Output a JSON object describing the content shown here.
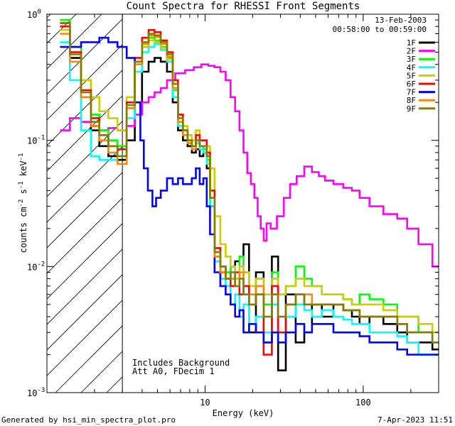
{
  "chart_data": {
    "type": "line",
    "title": "Count Spectra for RHESSI Front Segments",
    "xlabel": "Energy (keV)",
    "ylabel": "counts cm-2 s-1 keV-1",
    "xscale": "log",
    "yscale": "log",
    "xlim": [
      1.0,
      300.0
    ],
    "ylim": [
      0.001,
      1.0
    ],
    "x_ticks": [
      {
        "value": 10,
        "label": "10"
      },
      {
        "value": 100,
        "label": "100"
      }
    ],
    "y_ticks": [
      {
        "value": 1,
        "label": "10",
        "exp": "0"
      },
      {
        "value": 0.1,
        "label": "10",
        "exp": "-1"
      },
      {
        "value": 0.01,
        "label": "10",
        "exp": "-2"
      },
      {
        "value": 0.001,
        "label": "10",
        "exp": "-3"
      }
    ],
    "shaded_region": {
      "x_from": 1.0,
      "x_to": 3.0,
      "style": "hatched"
    },
    "date": "13-Feb-2003",
    "time_range": "00:58:00 to 00:59:00",
    "annotations": [
      "Includes Background",
      "Att A0, FDecim 1"
    ],
    "footer_left": "Generated by hsi_min_spectra_plot.pro",
    "footer_right": "7-Apr-2023 11:51",
    "series": [
      {
        "name": "1F",
        "color": "#000000",
        "x": [
          1.3,
          1.5,
          1.8,
          2.0,
          2.3,
          2.6,
          3.0,
          3.4,
          3.8,
          4.2,
          4.6,
          5.0,
          5.5,
          6.0,
          6.5,
          7.0,
          7.5,
          8.0,
          8.5,
          9.0,
          9.5,
          10.0,
          10.5,
          11.0,
          12.0,
          13,
          14,
          15,
          16,
          17,
          18,
          20,
          22,
          25,
          28,
          30,
          35,
          40,
          45,
          50,
          60,
          70,
          80,
          90,
          100,
          120,
          150,
          180,
          200,
          250,
          300
        ],
        "y": [
          0.85,
          0.45,
          0.22,
          0.12,
          0.09,
          0.075,
          0.07,
          0.1,
          0.2,
          0.35,
          0.42,
          0.45,
          0.42,
          0.35,
          0.2,
          0.12,
          0.1,
          0.09,
          0.08,
          0.085,
          0.075,
          0.08,
          0.06,
          0.03,
          0.012,
          0.009,
          0.008,
          0.01,
          0.011,
          0.012,
          0.015,
          0.003,
          0.009,
          0.0025,
          0.012,
          0.0015,
          0.006,
          0.0025,
          0.003,
          0.005,
          0.004,
          0.005,
          0.0045,
          0.004,
          0.0035,
          0.004,
          0.0035,
          0.003,
          0.0025,
          0.0025,
          0.0022
        ]
      },
      {
        "name": "2F",
        "color": "#ff00ff",
        "x": [
          1.3,
          1.5,
          1.8,
          2.0,
          2.3,
          2.6,
          3.0,
          3.4,
          3.8,
          4.2,
          4.6,
          5.0,
          5.5,
          6.0,
          7.0,
          8.0,
          9.0,
          10.0,
          11.0,
          12.0,
          13,
          14,
          15,
          16,
          17,
          18,
          19,
          20,
          21,
          22,
          23,
          24,
          25,
          27,
          30,
          33,
          36,
          40,
          45,
          50,
          55,
          60,
          70,
          80,
          90,
          100,
          120,
          150,
          180,
          200,
          250,
          300
        ],
        "y": [
          0.12,
          0.15,
          0.14,
          0.13,
          0.12,
          0.125,
          0.12,
          0.13,
          0.16,
          0.2,
          0.22,
          0.24,
          0.26,
          0.3,
          0.34,
          0.36,
          0.38,
          0.4,
          0.39,
          0.38,
          0.35,
          0.3,
          0.22,
          0.17,
          0.12,
          0.08,
          0.055,
          0.045,
          0.035,
          0.025,
          0.02,
          0.016,
          0.022,
          0.02,
          0.025,
          0.035,
          0.045,
          0.052,
          0.062,
          0.056,
          0.052,
          0.048,
          0.045,
          0.042,
          0.04,
          0.035,
          0.03,
          0.026,
          0.024,
          0.02,
          0.015,
          0.01
        ]
      },
      {
        "name": "3F",
        "color": "#00ff00",
        "x": [
          1.3,
          1.5,
          1.8,
          2.0,
          2.3,
          2.6,
          3.0,
          3.4,
          3.8,
          4.2,
          4.6,
          5.0,
          5.5,
          6.0,
          6.5,
          7.0,
          7.5,
          8.0,
          8.5,
          9.0,
          9.5,
          10.0,
          10.5,
          11.0,
          12.0,
          13,
          14,
          15,
          16,
          17,
          18,
          20,
          22,
          25,
          28,
          30,
          35,
          40,
          45,
          50,
          60,
          70,
          80,
          90,
          100,
          120,
          150,
          180,
          200,
          250,
          300
        ],
        "y": [
          0.9,
          0.55,
          0.3,
          0.16,
          0.12,
          0.1,
          0.09,
          0.2,
          0.4,
          0.55,
          0.65,
          0.62,
          0.55,
          0.45,
          0.25,
          0.14,
          0.12,
          0.1,
          0.09,
          0.1,
          0.09,
          0.085,
          0.07,
          0.035,
          0.014,
          0.01,
          0.009,
          0.01,
          0.008,
          0.012,
          0.009,
          0.006,
          0.008,
          0.005,
          0.009,
          0.006,
          0.007,
          0.01,
          0.008,
          0.007,
          0.006,
          0.006,
          0.0055,
          0.005,
          0.006,
          0.0055,
          0.005,
          0.004,
          0.004,
          0.003,
          0.003
        ]
      },
      {
        "name": "4F",
        "color": "#00ffff",
        "x": [
          1.3,
          1.5,
          1.8,
          2.0,
          2.3,
          2.6,
          3.0,
          3.4,
          3.8,
          4.2,
          4.6,
          5.0,
          5.5,
          6.0,
          6.5,
          7.0,
          7.5,
          8.0,
          8.5,
          9.0,
          9.5,
          10.0,
          10.5,
          11.0,
          12.0,
          13,
          14,
          15,
          16,
          17,
          18,
          20,
          22,
          25,
          28,
          30,
          35,
          40,
          45,
          50,
          60,
          70,
          80,
          90,
          100,
          120,
          150,
          180,
          200,
          250,
          300
        ],
        "y": [
          0.6,
          0.3,
          0.12,
          0.075,
          0.07,
          0.07,
          0.075,
          0.15,
          0.35,
          0.5,
          0.55,
          0.58,
          0.52,
          0.42,
          0.22,
          0.13,
          0.11,
          0.1,
          0.09,
          0.095,
          0.085,
          0.08,
          0.065,
          0.03,
          0.011,
          0.008,
          0.007,
          0.005,
          0.006,
          0.004,
          0.005,
          0.0035,
          0.004,
          0.003,
          0.005,
          0.003,
          0.004,
          0.005,
          0.0045,
          0.004,
          0.0045,
          0.004,
          0.0038,
          0.0035,
          0.0035,
          0.003,
          0.003,
          0.0028,
          0.0025,
          0.002,
          0.002
        ]
      },
      {
        "name": "5F",
        "color": "#cccc00",
        "x": [
          1.3,
          1.5,
          1.8,
          2.0,
          2.3,
          2.6,
          3.0,
          3.4,
          3.8,
          4.2,
          4.6,
          5.0,
          5.5,
          6.0,
          6.5,
          7.0,
          7.5,
          8.0,
          8.5,
          9.0,
          9.5,
          10.0,
          10.5,
          11.0,
          12.0,
          13,
          14,
          15,
          16,
          17,
          18,
          20,
          22,
          25,
          28,
          30,
          35,
          40,
          45,
          50,
          60,
          70,
          80,
          90,
          100,
          120,
          150,
          180,
          200,
          250,
          300
        ],
        "y": [
          0.75,
          0.5,
          0.3,
          0.22,
          0.17,
          0.15,
          0.12,
          0.22,
          0.42,
          0.55,
          0.62,
          0.6,
          0.54,
          0.44,
          0.28,
          0.16,
          0.13,
          0.11,
          0.1,
          0.12,
          0.1,
          0.1,
          0.09,
          0.06,
          0.025,
          0.015,
          0.012,
          0.01,
          0.008,
          0.01,
          0.009,
          0.007,
          0.008,
          0.006,
          0.008,
          0.006,
          0.007,
          0.008,
          0.007,
          0.007,
          0.006,
          0.006,
          0.0055,
          0.005,
          0.005,
          0.005,
          0.0045,
          0.004,
          0.004,
          0.0035,
          0.003
        ]
      },
      {
        "name": "6F",
        "color": "#ff0000",
        "x": [
          1.3,
          1.5,
          1.8,
          2.0,
          2.3,
          2.6,
          3.0,
          3.4,
          3.8,
          4.2,
          4.6,
          5.0,
          5.5,
          6.0,
          6.5,
          7.0,
          7.5,
          8.0,
          8.5,
          9.0,
          9.5,
          10.0,
          10.5,
          11.0,
          12.0,
          13,
          14,
          15,
          16,
          17,
          18,
          20,
          22,
          25,
          28,
          30,
          35,
          40,
          45,
          50,
          60,
          70,
          80,
          90,
          100,
          120,
          150,
          180,
          200,
          250,
          300
        ],
        "y": [
          0.8,
          0.5,
          0.25,
          0.15,
          0.11,
          0.09,
          0.085,
          0.2,
          0.45,
          0.65,
          0.75,
          0.72,
          0.62,
          0.5,
          0.3,
          0.16,
          0.12,
          0.1,
          0.09,
          0.11,
          0.1,
          0.1,
          0.08,
          0.04,
          0.014,
          0.01,
          0.008,
          0.007,
          0.009,
          0.006,
          0.007,
          0.005,
          0.006,
          0.002,
          0.007,
          0.003,
          0.005,
          0.006,
          0.005,
          0.005,
          0.005,
          0.005,
          0.0045,
          0.0045,
          0.004,
          0.004,
          0.004,
          0.0035,
          0.003,
          0.003,
          0.0025
        ]
      },
      {
        "name": "7F",
        "color": "#0000ff",
        "x": [
          1.3,
          1.5,
          1.8,
          2.0,
          2.3,
          2.6,
          3.0,
          3.4,
          3.8,
          4.0,
          4.2,
          4.5,
          4.8,
          5.0,
          5.5,
          6.0,
          6.5,
          7.0,
          7.5,
          8.0,
          8.5,
          9.0,
          9.5,
          10.0,
          10.5,
          11.0,
          12.0,
          13,
          14,
          15,
          16,
          17,
          18,
          20,
          22,
          25,
          28,
          30,
          35,
          40,
          45,
          50,
          60,
          70,
          80,
          90,
          100,
          120,
          150,
          180,
          200,
          250,
          300
        ],
        "y": [
          0.55,
          0.55,
          0.6,
          0.6,
          0.65,
          0.6,
          0.55,
          0.45,
          0.2,
          0.1,
          0.06,
          0.04,
          0.03,
          0.035,
          0.04,
          0.05,
          0.045,
          0.05,
          0.045,
          0.045,
          0.05,
          0.06,
          0.045,
          0.05,
          0.03,
          0.018,
          0.009,
          0.007,
          0.006,
          0.005,
          0.004,
          0.0045,
          0.003,
          0.0035,
          0.003,
          0.0025,
          0.003,
          0.0025,
          0.003,
          0.0035,
          0.003,
          0.0035,
          0.0035,
          0.003,
          0.003,
          0.003,
          0.0028,
          0.0025,
          0.0025,
          0.0022,
          0.002,
          0.002,
          0.002
        ]
      },
      {
        "name": "8F",
        "color": "#ff8800",
        "x": [
          1.3,
          1.5,
          1.8,
          2.0,
          2.3,
          2.6,
          3.0,
          3.4,
          3.8,
          4.2,
          4.6,
          5.0,
          5.5,
          6.0,
          6.5,
          7.0,
          7.5,
          8.0,
          8.5,
          9.0,
          9.5,
          10.0,
          10.5,
          11.0,
          12.0,
          13,
          14,
          15,
          16,
          17,
          18,
          20,
          22,
          25,
          28,
          30,
          35,
          40,
          45,
          50,
          60,
          70,
          80,
          90,
          100,
          120,
          150,
          180,
          200,
          250,
          300
        ],
        "y": [
          0.7,
          0.42,
          0.22,
          0.13,
          0.1,
          0.08,
          0.065,
          0.18,
          0.4,
          0.58,
          0.68,
          0.66,
          0.58,
          0.46,
          0.26,
          0.14,
          0.11,
          0.095,
          0.085,
          0.1,
          0.09,
          0.09,
          0.075,
          0.035,
          0.012,
          0.009,
          0.008,
          0.008,
          0.007,
          0.009,
          0.006,
          0.006,
          0.007,
          0.004,
          0.006,
          0.004,
          0.005,
          0.006,
          0.006,
          0.005,
          0.005,
          0.005,
          0.0045,
          0.0045,
          0.004,
          0.004,
          0.004,
          0.0035,
          0.003,
          0.003,
          0.0025
        ]
      },
      {
        "name": "9F",
        "color": "#808000",
        "x": [
          1.3,
          1.5,
          1.8,
          2.0,
          2.3,
          2.6,
          3.0,
          3.4,
          3.8,
          4.2,
          4.6,
          5.0,
          5.5,
          6.0,
          6.5,
          7.0,
          7.5,
          8.0,
          8.5,
          9.0,
          9.5,
          10.0,
          10.5,
          11.0,
          12.0,
          13,
          14,
          15,
          16,
          17,
          18,
          20,
          22,
          25,
          28,
          30,
          35,
          40,
          45,
          50,
          60,
          70,
          80,
          90,
          100,
          120,
          150,
          180,
          200,
          250,
          300
        ],
        "y": [
          0.85,
          0.48,
          0.24,
          0.14,
          0.11,
          0.09,
          0.075,
          0.19,
          0.42,
          0.6,
          0.7,
          0.68,
          0.6,
          0.48,
          0.28,
          0.15,
          0.12,
          0.1,
          0.09,
          0.1,
          0.09,
          0.09,
          0.075,
          0.035,
          0.013,
          0.01,
          0.008,
          0.009,
          0.007,
          0.008,
          0.006,
          0.005,
          0.006,
          0.004,
          0.006,
          0.004,
          0.005,
          0.006,
          0.005,
          0.005,
          0.005,
          0.005,
          0.0045,
          0.0045,
          0.004,
          0.004,
          0.004,
          0.0035,
          0.003,
          0.003,
          0.0025
        ]
      }
    ]
  }
}
